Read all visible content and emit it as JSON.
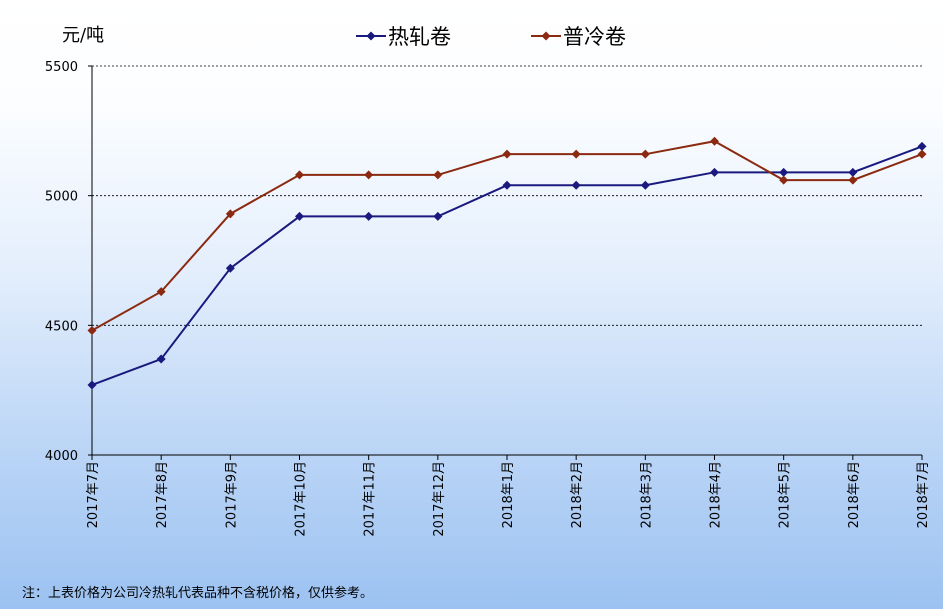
{
  "chart_data": {
    "type": "line",
    "unit_label": "元/吨",
    "categories": [
      "2017年7月",
      "2017年8月",
      "2017年9月",
      "2017年10月",
      "2017年11月",
      "2017年12月",
      "2018年1月",
      "2018年2月",
      "2018年3月",
      "2018年4月",
      "2018年5月",
      "2018年6月",
      "2018年7月"
    ],
    "series": [
      {
        "name": "热轧卷",
        "color": "#1a1a7e",
        "values": [
          4270,
          4370,
          4720,
          4920,
          4920,
          4920,
          5040,
          5040,
          5040,
          5090,
          5090,
          5090,
          5190
        ]
      },
      {
        "name": "普冷卷",
        "color": "#8b2a10",
        "values": [
          4480,
          4630,
          4930,
          5080,
          5080,
          5080,
          5160,
          5160,
          5160,
          5210,
          5060,
          5060,
          5160
        ]
      }
    ],
    "ylim": [
      4000,
      5500
    ],
    "yticks": [
      4000,
      4500,
      5000,
      5500
    ],
    "grid": "horizontal-dashed",
    "legend_position": "top-center"
  },
  "note": "注：上表价格为公司冷热轧代表品种不含税价格，仅供参考。"
}
